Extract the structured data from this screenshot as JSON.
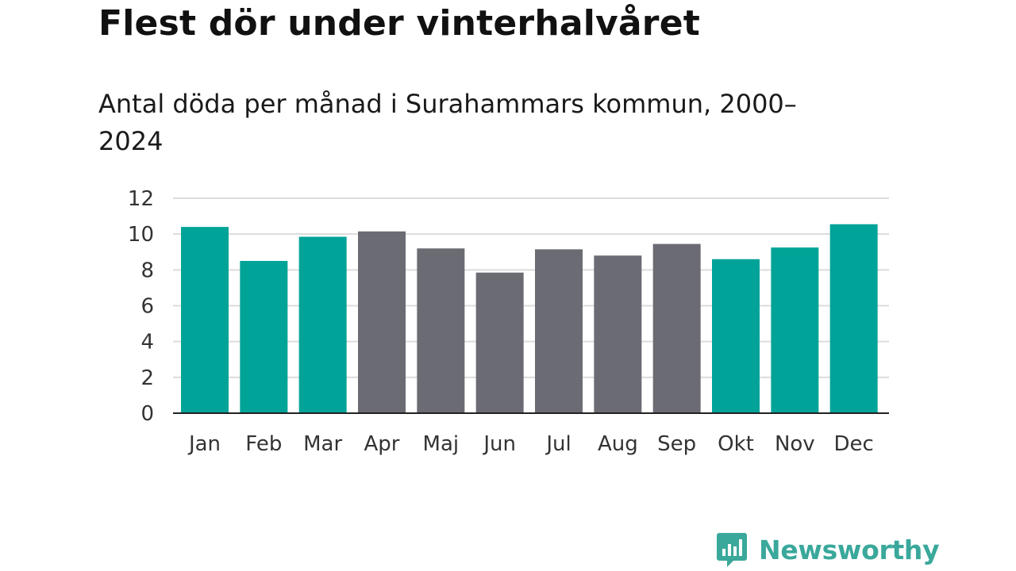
{
  "chart_data": {
    "type": "bar",
    "title": "Flest dör under vinterhalvåret",
    "subtitle": "Antal döda per månad i Surahammars kommun, 2000–2024",
    "categories": [
      "Jan",
      "Feb",
      "Mar",
      "Apr",
      "Maj",
      "Jun",
      "Jul",
      "Aug",
      "Sep",
      "Okt",
      "Nov",
      "Dec"
    ],
    "values": [
      10.4,
      8.5,
      9.85,
      10.15,
      9.2,
      7.85,
      9.15,
      8.8,
      9.45,
      8.6,
      9.25,
      10.55
    ],
    "highlight": [
      true,
      true,
      true,
      false,
      false,
      false,
      false,
      false,
      false,
      true,
      true,
      true
    ],
    "ylim": [
      0,
      12
    ],
    "yticks": [
      0,
      2,
      4,
      6,
      8,
      10,
      12
    ],
    "xlabel": "",
    "ylabel": "",
    "grid": true,
    "colors": {
      "winter": "#00a398",
      "summer": "#6b6b73",
      "grid": "#dcdcdc",
      "axis": "#222222"
    }
  },
  "brand": {
    "name": "Newsworthy",
    "icon": "newsworthy-logo-icon",
    "color": "#3aa89b"
  }
}
